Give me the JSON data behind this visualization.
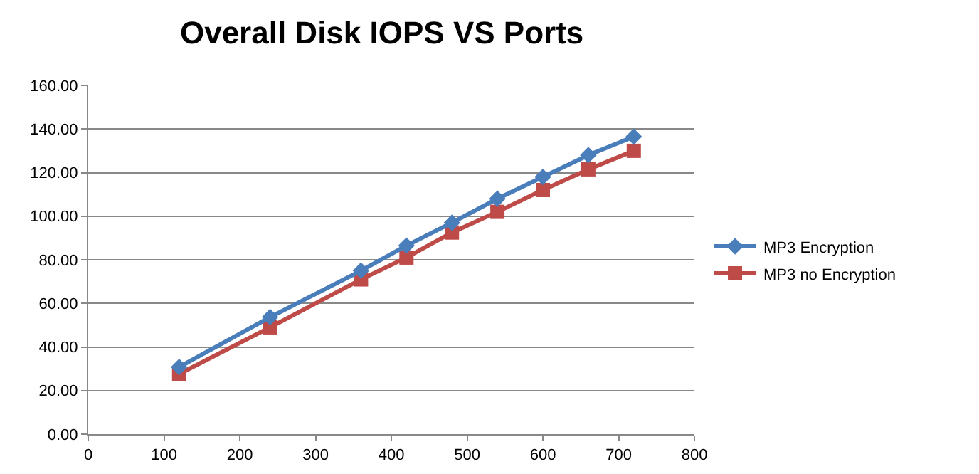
{
  "chart_data": {
    "type": "line",
    "title": "Overall Disk IOPS VS Ports",
    "x": [
      120,
      240,
      360,
      420,
      480,
      540,
      600,
      660,
      720
    ],
    "series": [
      {
        "name": "MP3 Encryption",
        "color": "#4a7ebb",
        "marker": "diamond",
        "values": [
          30.8,
          53.7,
          75,
          86.5,
          97,
          108,
          118,
          128,
          136.5
        ]
      },
      {
        "name": "MP3 no Encryption",
        "color": "#be4b48",
        "marker": "square",
        "values": [
          27.6,
          49,
          71,
          81,
          92.5,
          102,
          112,
          121.5,
          130
        ]
      }
    ],
    "xlim": [
      0,
      800
    ],
    "xticks": [
      0,
      100,
      200,
      300,
      400,
      500,
      600,
      700,
      800
    ],
    "ylim": [
      0,
      160
    ],
    "yticks": [
      {
        "value": 0,
        "label": "0.00"
      },
      {
        "value": 20,
        "label": "20.00"
      },
      {
        "value": 40,
        "label": "40.00"
      },
      {
        "value": 60,
        "label": "60.00"
      },
      {
        "value": 80,
        "label": "80.00"
      },
      {
        "value": 100,
        "label": "100.00"
      },
      {
        "value": 120,
        "label": "120.00"
      },
      {
        "value": 140,
        "label": "140.00"
      },
      {
        "value": 160,
        "label": "160.00"
      }
    ],
    "grid": "y",
    "legend": "right",
    "line_style": "solid"
  }
}
